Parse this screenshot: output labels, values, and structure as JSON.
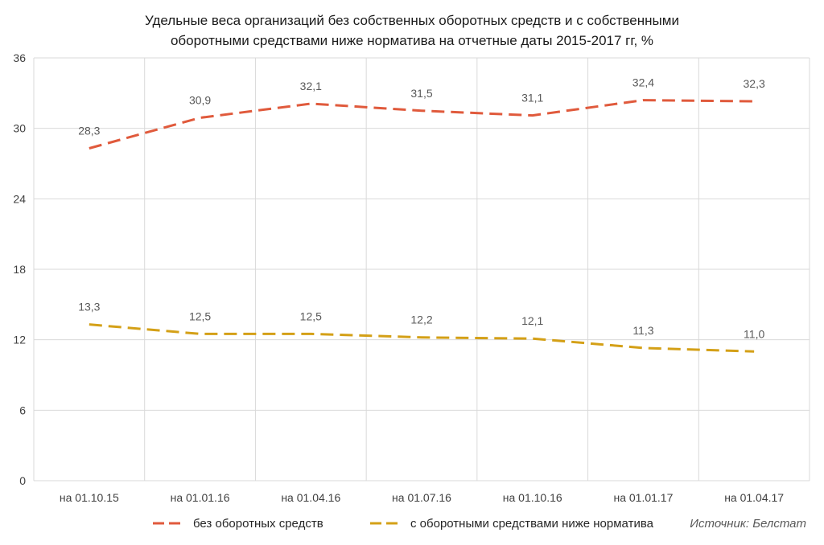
{
  "chart_data": {
    "type": "line",
    "title": "Удельные веса организаций без собственных оборотных средств и с собственными оборотными средствами ниже норматива на отчетные даты 2015-2017 гг, %",
    "title_lines": [
      "Удельные веса организаций без собственных оборотных средств и с собственными",
      "оборотными средствами ниже норматива на отчетные даты 2015-2017 гг, %"
    ],
    "categories": [
      "на 01.10.15",
      "на 01.01.16",
      "на 01.04.16",
      "на 01.07.16",
      "на 01.10.16",
      "на 01.01.17",
      "на 01.04.17"
    ],
    "series": [
      {
        "name": "без оборотных средств",
        "values": [
          28.3,
          30.9,
          32.1,
          31.5,
          31.1,
          32.4,
          32.3
        ],
        "labels": [
          "28,3",
          "30,9",
          "32,1",
          "31,5",
          "31,1",
          "32,4",
          "32,3"
        ],
        "color": "#e05a3c",
        "dash": "dashed"
      },
      {
        "name": "с оборотными средствами ниже норматива",
        "values": [
          13.3,
          12.5,
          12.5,
          12.2,
          12.1,
          11.3,
          11.0
        ],
        "labels": [
          "13,3",
          "12,5",
          "12,5",
          "12,2",
          "12,1",
          "11,3",
          "11,0"
        ],
        "color": "#d4a017",
        "dash": "dashed"
      }
    ],
    "ylim": [
      0,
      36
    ],
    "yticks": [
      0,
      6,
      12,
      18,
      24,
      30,
      36
    ],
    "ytick_labels": [
      "0",
      "6",
      "12",
      "18",
      "24",
      "30",
      "36"
    ],
    "grid": true,
    "legend_position": "bottom",
    "source": "Источник: Белстат"
  }
}
